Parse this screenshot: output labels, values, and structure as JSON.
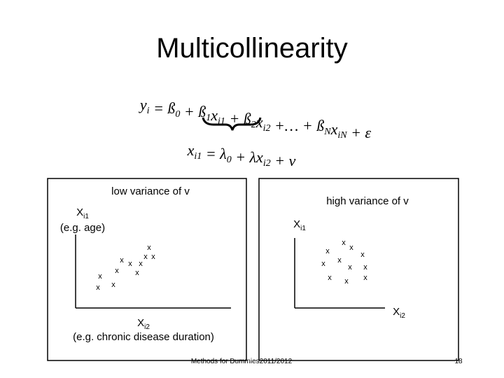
{
  "title": "Multicollinearity",
  "equation_1": [
    {
      "text": "y",
      "sub": "i"
    },
    {
      "text": " = ß",
      "sub": "0"
    },
    {
      "text": " + ß",
      "sub": "1"
    },
    {
      "text": "x",
      "sub": "i1"
    },
    {
      "text": " + ß",
      "sub": "2"
    },
    {
      "text": "x",
      "sub": "i2"
    },
    {
      "text": " +… + ß",
      "sub": "N"
    },
    {
      "text": "x",
      "sub": "iN"
    },
    {
      "text": " + ε"
    }
  ],
  "equation_2": [
    {
      "text": "x",
      "sub": "i1"
    },
    {
      "text": " = λ",
      "sub": "0"
    },
    {
      "text": " + λx",
      "sub": "i2"
    },
    {
      "text": " + v"
    }
  ],
  "panels": [
    {
      "title": "low variance of v",
      "y_label": "X",
      "y_label_sub": "i1",
      "y_note": "(e.g. age)",
      "x_label": "X",
      "x_label_sub": "i2",
      "x_note": "(e.g. chronic disease duration)",
      "marker": "x"
    },
    {
      "title": "high variance of v",
      "y_label": "X",
      "y_label_sub": "i1",
      "x_label": "X",
      "x_label_sub": "i2",
      "marker": "x"
    }
  ],
  "footer": "Methods for Dummies2011/2012",
  "page_number": "18"
}
